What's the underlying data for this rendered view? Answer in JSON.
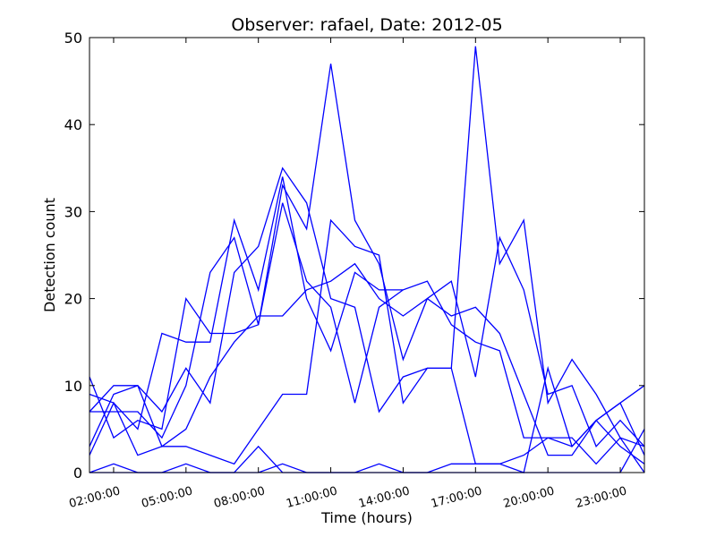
{
  "chart_data": {
    "type": "line",
    "title": "Observer: rafael, Date: 2012-05",
    "xlabel": "Time (hours)",
    "ylabel": "Detection count",
    "xlim": [
      1,
      24
    ],
    "ylim": [
      0,
      50
    ],
    "x_ticks": [
      2,
      5,
      8,
      11,
      14,
      17,
      20,
      23
    ],
    "x_tick_labels": [
      "02:00:00",
      "05:00:00",
      "08:00:00",
      "11:00:00",
      "14:00:00",
      "17:00:00",
      "20:00:00",
      "23:00:00"
    ],
    "y_ticks": [
      0,
      10,
      20,
      30,
      40,
      50
    ],
    "y_tick_labels": [
      "0",
      "10",
      "20",
      "30",
      "40",
      "50"
    ],
    "grid": false,
    "line_color": "#0000ff",
    "series": [
      {
        "x": [
          1,
          2,
          3,
          4,
          5,
          6,
          7,
          8,
          9,
          10,
          11,
          12,
          13,
          14,
          15,
          16,
          17,
          18,
          19,
          20,
          21,
          22,
          23,
          24
        ],
        "values": [
          11,
          4,
          6,
          5,
          20,
          16,
          16,
          17,
          33,
          28,
          47,
          29,
          24,
          13,
          20,
          22,
          11,
          27,
          21,
          9,
          10,
          3,
          6,
          3
        ]
      },
      {
        "x": [
          1,
          2,
          3,
          4,
          5,
          6,
          7,
          8,
          9,
          10,
          11,
          12,
          13,
          14,
          15,
          16,
          17,
          18,
          19,
          20,
          21,
          22,
          23,
          24
        ],
        "values": [
          7,
          10,
          10,
          7,
          12,
          8,
          23,
          26,
          35,
          31,
          20,
          19,
          7,
          11,
          12,
          12,
          49,
          24,
          29,
          8,
          13,
          9,
          4,
          3
        ]
      },
      {
        "x": [
          1,
          2,
          3,
          4,
          5,
          6,
          7,
          8,
          9,
          10,
          11,
          12,
          13,
          14,
          15,
          16,
          17,
          18,
          19,
          20,
          21,
          22,
          23,
          24
        ],
        "values": [
          2,
          8,
          2,
          3,
          3,
          2,
          1,
          5,
          9,
          9,
          29,
          26,
          25,
          8,
          12,
          12,
          1,
          1,
          0,
          12,
          3,
          6,
          8,
          2
        ]
      },
      {
        "x": [
          1,
          2,
          3,
          4,
          5,
          6,
          7,
          8,
          9,
          10,
          11,
          12,
          13,
          14,
          15,
          16,
          17,
          18,
          19,
          20,
          21,
          22,
          23,
          24
        ],
        "values": [
          0,
          1,
          0,
          0,
          1,
          0,
          0,
          3,
          0,
          0,
          0,
          0,
          1,
          0,
          0,
          1,
          1,
          1,
          2,
          4,
          4,
          1,
          4,
          0
        ]
      },
      {
        "x": [
          1,
          2,
          3,
          4,
          5,
          6,
          7,
          8,
          9,
          10,
          11,
          12,
          13,
          14,
          15,
          16,
          17,
          18,
          19,
          20,
          21,
          22,
          23,
          24
        ],
        "values": [
          3,
          9,
          10,
          3,
          5,
          11,
          15,
          18,
          18,
          21,
          22,
          24,
          20,
          18,
          20,
          18,
          19,
          16,
          9,
          2,
          2,
          6,
          8,
          10
        ]
      },
      {
        "x": [
          1,
          2,
          3,
          4,
          5,
          6,
          7,
          8,
          9,
          10,
          11,
          12,
          13,
          14,
          15,
          16,
          17,
          18,
          19,
          20,
          21,
          22,
          23,
          24
        ],
        "values": [
          9,
          8,
          5,
          16,
          15,
          15,
          29,
          21,
          34,
          20,
          14,
          23,
          21,
          21,
          22,
          17,
          15,
          14,
          4,
          4,
          3,
          6,
          3,
          1
        ]
      },
      {
        "x": [
          1,
          2,
          3,
          4,
          5,
          6,
          7,
          8,
          9,
          10,
          11,
          12,
          13,
          14
        ],
        "values": [
          7,
          7,
          7,
          4,
          10,
          23,
          27,
          17,
          31,
          22,
          19,
          8,
          19,
          21
        ]
      },
      {
        "x": [
          1,
          2,
          3,
          4,
          5,
          6,
          7,
          8,
          9,
          10,
          11,
          12,
          13,
          14,
          15,
          16,
          17,
          18,
          19,
          20,
          21,
          22,
          23,
          24
        ],
        "values": [
          0,
          0,
          0,
          0,
          0,
          0,
          0,
          0,
          1,
          0,
          0,
          0,
          0,
          0,
          0,
          0,
          0,
          0,
          0,
          0,
          0,
          0,
          0,
          5
        ]
      }
    ]
  }
}
